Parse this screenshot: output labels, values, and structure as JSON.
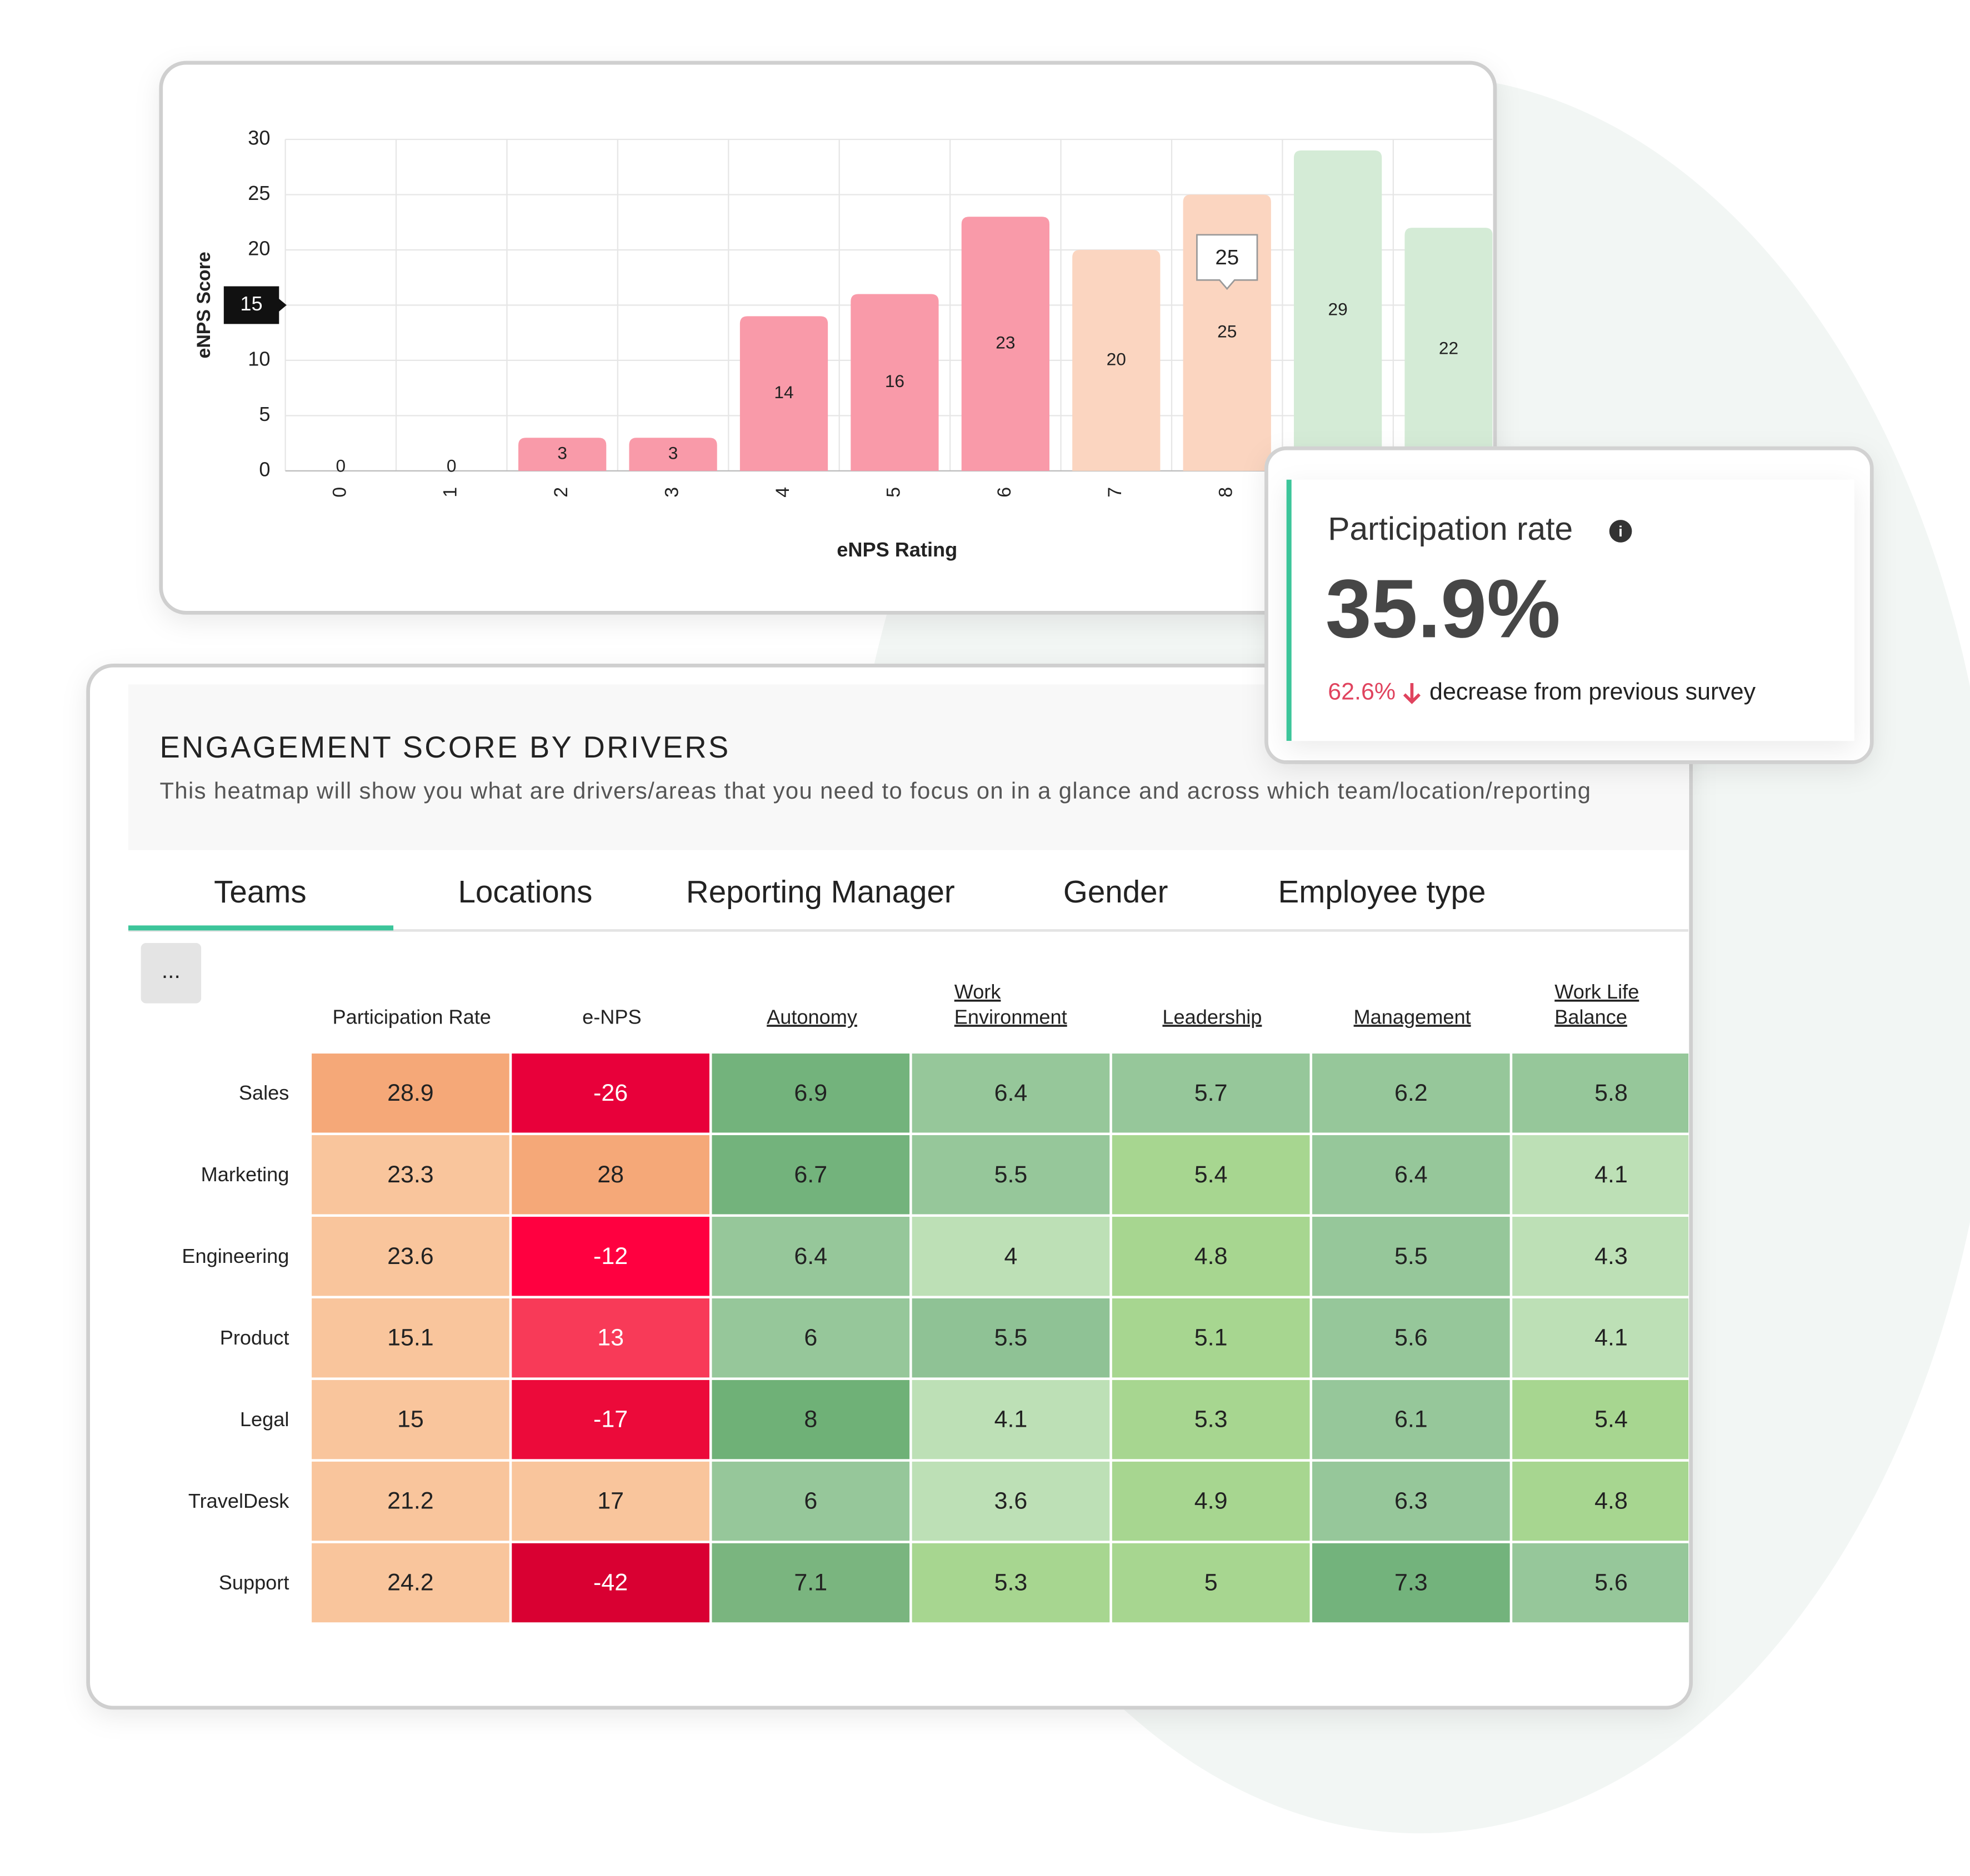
{
  "chart_data": {
    "type": "bar",
    "x_label": "eNPS Rating",
    "y_label": "eNPS Score",
    "categories": [
      "0",
      "1",
      "2",
      "3",
      "4",
      "5",
      "6",
      "7",
      "8",
      null,
      null
    ],
    "values": [
      0,
      0,
      3,
      3,
      14,
      16,
      23,
      20,
      25,
      29,
      22
    ],
    "colors": [
      "#f99aa9",
      "#f99aa9",
      "#f99aa9",
      "#f99aa9",
      "#f99aa9",
      "#f99aa9",
      "#f99aa9",
      "#fbd5c0",
      "#fbd5c0",
      "#d4ebd6",
      "#d4ebd6"
    ],
    "ylim": [
      0,
      30
    ],
    "yticks": [
      0,
      5,
      10,
      15,
      20,
      25,
      30
    ],
    "grid": true,
    "highlighted_ytick": 15,
    "tooltip": {
      "value": 25
    }
  },
  "participation_card": {
    "title": "Participation rate",
    "value": "35.9%",
    "change": "62.6%",
    "change_text": "decrease from previous survey"
  },
  "heatmap": {
    "title": "ENGAGEMENT SCORE BY DRIVERS",
    "subtitle": "This heatmap will show you what are drivers/areas that you need to focus on in a glance and across which team/location/reporting",
    "tabs": [
      "Teams",
      "Locations",
      "Reporting Manager",
      "Gender",
      "Employee type"
    ],
    "more_button": "...",
    "columns": [
      [
        "Participation Rate"
      ],
      [
        "e-NPS"
      ],
      [
        "Autonomy"
      ],
      [
        "Work",
        "Environment"
      ],
      [
        "Leadership"
      ],
      [
        "Management"
      ],
      [
        "Work Life",
        "Balance"
      ]
    ],
    "rows": [
      {
        "label": "Sales",
        "values": [
          28.9,
          -26,
          6.9,
          6.4,
          5.7,
          6.2,
          5.8
        ],
        "colors": [
          "#f5a878",
          "#e8003a",
          "#73b37c",
          "#96c79a",
          "#96c79a",
          "#96c79a",
          "#96c79a"
        ]
      },
      {
        "label": "Marketing",
        "values": [
          23.3,
          28,
          6.7,
          5.5,
          5.4,
          6.4,
          4.1
        ],
        "colors": [
          "#f9c59c",
          "#f5a878",
          "#73b37c",
          "#96c79a",
          "#a7d690",
          "#96c79a",
          "#bde0b6"
        ]
      },
      {
        "label": "Engineering",
        "values": [
          23.6,
          -12,
          6.4,
          4,
          4.8,
          5.5,
          4.3
        ],
        "colors": [
          "#f9c59c",
          "#ff0040",
          "#96c79a",
          "#bde0b6",
          "#a7d690",
          "#96c79a",
          "#bde0b6"
        ]
      },
      {
        "label": "Product",
        "values": [
          15.1,
          13,
          6,
          5.5,
          5.1,
          5.6,
          4.1
        ],
        "colors": [
          "#f9c59c",
          "#f83a58",
          "#96c79a",
          "#8fc295",
          "#a7d690",
          "#96c79a",
          "#bde0b6"
        ]
      },
      {
        "label": "Legal",
        "values": [
          15,
          -17,
          8,
          4.1,
          5.3,
          6.1,
          5.4
        ],
        "colors": [
          "#f9c59c",
          "#ec0a3a",
          "#6fb177",
          "#bde0b6",
          "#a7d690",
          "#96c79a",
          "#a7d690"
        ]
      },
      {
        "label": "TravelDesk",
        "values": [
          21.2,
          17,
          6,
          3.6,
          4.9,
          6.3,
          4.8
        ],
        "colors": [
          "#f9c59c",
          "#f9c59c",
          "#96c79a",
          "#bde0b6",
          "#a7d690",
          "#96c79a",
          "#a7d690"
        ]
      },
      {
        "label": "Support",
        "values": [
          24.2,
          -42,
          7.1,
          5.3,
          5,
          7.3,
          5.6
        ],
        "colors": [
          "#f9c59c",
          "#d90032",
          "#7ab57f",
          "#a7d690",
          "#a7d690",
          "#73b37c",
          "#96c79a"
        ]
      }
    ]
  }
}
